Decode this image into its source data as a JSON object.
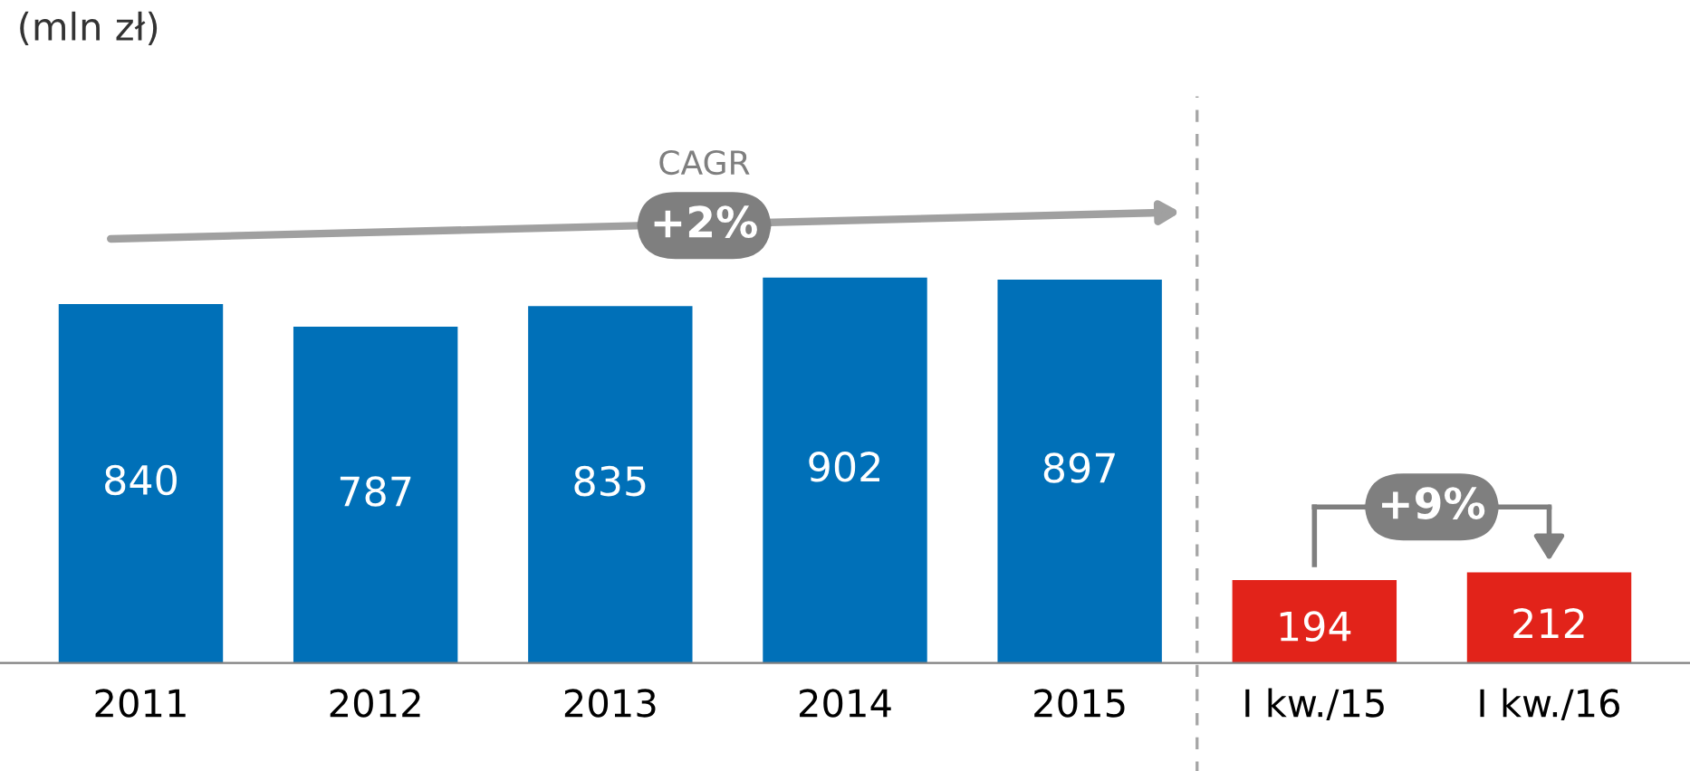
{
  "chart_data": {
    "type": "bar",
    "title": "(mln zł)",
    "categories": [
      "2011",
      "2012",
      "2013",
      "2014",
      "2015",
      "I kw./15",
      "I kw./16"
    ],
    "values": [
      840,
      787,
      835,
      902,
      897,
      194,
      212
    ],
    "colors": [
      "#0070b8",
      "#0070b8",
      "#0070b8",
      "#0070b8",
      "#0070b8",
      "#e2231a",
      "#e2231a"
    ],
    "data_labels": true,
    "grid": false,
    "legend": false,
    "annotations": [
      "CAGR",
      "+2%",
      "+9%"
    ]
  }
}
